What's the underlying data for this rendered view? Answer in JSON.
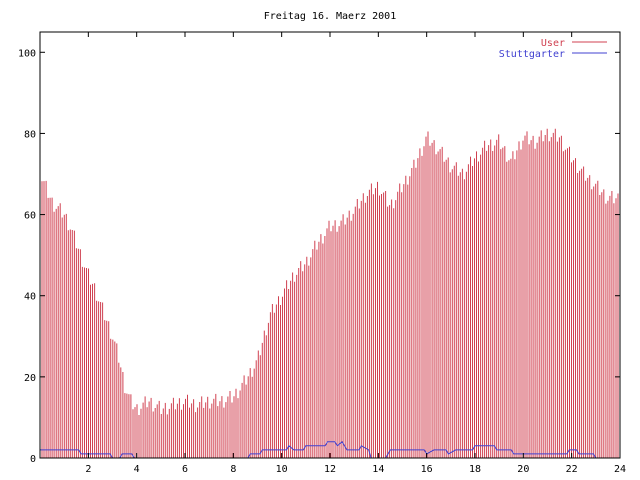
{
  "chart_data": {
    "type": "bar",
    "title": "Freitag 16. Maerz 2001",
    "xlabel": "",
    "ylabel": "",
    "xlim": [
      0,
      24
    ],
    "ylim": [
      0,
      105
    ],
    "xticks": [
      "2",
      "4",
      "6",
      "8",
      "10",
      "12",
      "14",
      "16",
      "18",
      "20",
      "22",
      "24"
    ],
    "yticks": [
      "0",
      "20",
      "40",
      "60",
      "80",
      "100"
    ],
    "grid": false,
    "legend_position": "top-right",
    "series": [
      {
        "name": "User",
        "color": "#d04050",
        "style": "impulses",
        "points": [
          [
            0,
            70
          ],
          [
            0.5,
            63
          ],
          [
            1,
            60
          ],
          [
            1.25,
            57
          ],
          [
            1.5,
            53
          ],
          [
            1.75,
            49
          ],
          [
            2,
            45
          ],
          [
            2.25,
            42
          ],
          [
            2.5,
            38
          ],
          [
            2.75,
            34
          ],
          [
            3,
            30
          ],
          [
            3.25,
            25
          ],
          [
            3.5,
            18
          ],
          [
            3.75,
            14
          ],
          [
            4,
            12
          ],
          [
            4.5,
            14
          ],
          [
            5,
            12
          ],
          [
            5.5,
            13
          ],
          [
            6,
            14
          ],
          [
            6.5,
            13
          ],
          [
            7,
            14
          ],
          [
            7.5,
            14
          ],
          [
            8,
            15
          ],
          [
            8.5,
            19
          ],
          [
            9,
            24
          ],
          [
            9.5,
            35
          ],
          [
            10,
            40
          ],
          [
            10.5,
            45
          ],
          [
            11,
            48
          ],
          [
            11.5,
            53
          ],
          [
            12,
            57
          ],
          [
            12.5,
            58
          ],
          [
            13,
            61
          ],
          [
            13.5,
            65
          ],
          [
            14,
            67
          ],
          [
            14.5,
            62
          ],
          [
            15,
            67
          ],
          [
            15.5,
            72
          ],
          [
            16,
            79
          ],
          [
            16.5,
            76
          ],
          [
            17,
            72
          ],
          [
            17.5,
            70
          ],
          [
            18,
            74
          ],
          [
            18.5,
            77
          ],
          [
            19,
            78
          ],
          [
            19.5,
            73
          ],
          [
            20,
            79
          ],
          [
            20.5,
            78
          ],
          [
            21,
            80
          ],
          [
            21.5,
            79
          ],
          [
            22,
            74
          ],
          [
            22.5,
            70
          ],
          [
            23,
            67
          ],
          [
            23.5,
            64
          ],
          [
            24,
            64
          ]
        ]
      },
      {
        "name": "Stuttgarter",
        "color": "#4040d0",
        "style": "line",
        "points": [
          [
            0,
            2
          ],
          [
            1.6,
            2
          ],
          [
            1.7,
            1
          ],
          [
            2.9,
            1
          ],
          [
            3.0,
            0
          ],
          [
            3.3,
            0
          ],
          [
            3.4,
            1
          ],
          [
            3.8,
            1
          ],
          [
            3.9,
            0
          ],
          [
            8.6,
            0
          ],
          [
            8.7,
            1
          ],
          [
            9.1,
            1
          ],
          [
            9.2,
            2
          ],
          [
            10.2,
            2
          ],
          [
            10.3,
            3
          ],
          [
            10.5,
            2
          ],
          [
            10.9,
            2
          ],
          [
            11.0,
            3
          ],
          [
            11.8,
            3
          ],
          [
            11.9,
            4
          ],
          [
            12.2,
            4
          ],
          [
            12.3,
            3
          ],
          [
            12.5,
            4
          ],
          [
            12.7,
            2
          ],
          [
            13.2,
            2
          ],
          [
            13.3,
            3
          ],
          [
            13.6,
            2
          ],
          [
            13.7,
            0
          ],
          [
            14.3,
            0
          ],
          [
            14.5,
            2
          ],
          [
            15.9,
            2
          ],
          [
            16.0,
            1
          ],
          [
            16.3,
            2
          ],
          [
            16.8,
            2
          ],
          [
            16.9,
            1
          ],
          [
            17.2,
            2
          ],
          [
            17.9,
            2
          ],
          [
            18.0,
            3
          ],
          [
            18.8,
            3
          ],
          [
            18.9,
            2
          ],
          [
            19.5,
            2
          ],
          [
            19.6,
            1
          ],
          [
            21.8,
            1
          ],
          [
            21.9,
            2
          ],
          [
            22.2,
            2
          ],
          [
            22.3,
            1
          ],
          [
            22.9,
            1
          ],
          [
            23.0,
            0
          ],
          [
            24,
            0
          ]
        ]
      }
    ]
  }
}
